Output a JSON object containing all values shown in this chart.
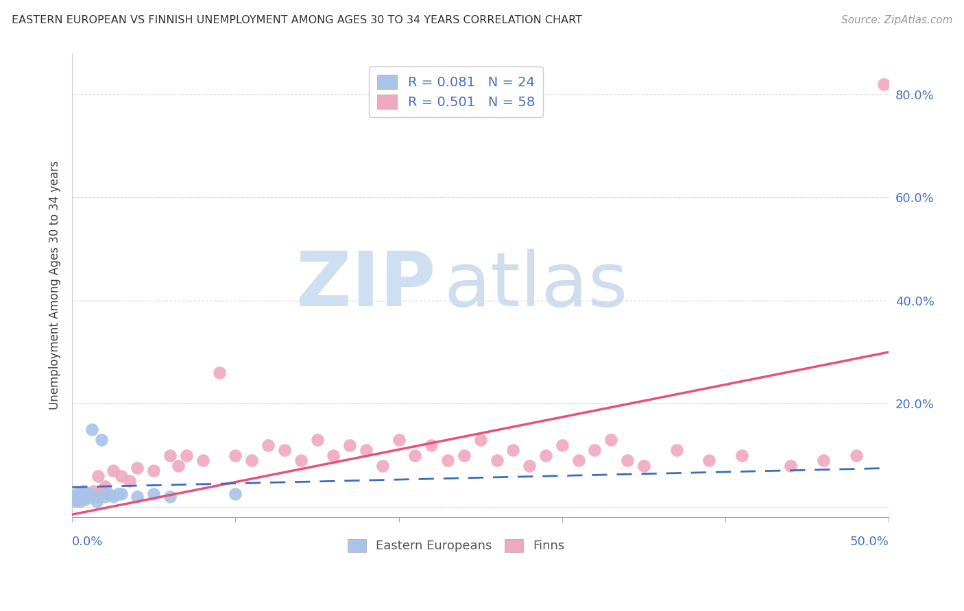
{
  "title": "EASTERN EUROPEAN VS FINNISH UNEMPLOYMENT AMONG AGES 30 TO 34 YEARS CORRELATION CHART",
  "source": "Source: ZipAtlas.com",
  "ylabel": "Unemployment Among Ages 30 to 34 years",
  "xlim": [
    0.0,
    0.5
  ],
  "ylim": [
    -0.02,
    0.88
  ],
  "blue_R": 0.081,
  "blue_N": 24,
  "pink_R": 0.501,
  "pink_N": 58,
  "blue_color": "#a8c4e8",
  "pink_color": "#f0a8be",
  "blue_line_color": "#3a6cc4",
  "pink_line_color": "#e8507a",
  "text_color": "#4472c4",
  "grid_color": "#cccccc",
  "watermark_zip_color": "#cddff0",
  "watermark_atlas_color": "#c8d8ea",
  "legend_label_blue": "Eastern Europeans",
  "legend_label_pink": "Finns",
  "blue_x": [
    0.0,
    0.002,
    0.003,
    0.005,
    0.006,
    0.007,
    0.008,
    0.009,
    0.01,
    0.01,
    0.012,
    0.013,
    0.015,
    0.016,
    0.018,
    0.02,
    0.022,
    0.025,
    0.028,
    0.03,
    0.04,
    0.05,
    0.06,
    0.1
  ],
  "blue_y": [
    0.02,
    0.015,
    0.025,
    0.01,
    0.02,
    0.03,
    0.015,
    0.025,
    0.02,
    0.025,
    0.15,
    0.02,
    0.01,
    0.02,
    0.13,
    0.02,
    0.025,
    0.02,
    0.025,
    0.025,
    0.02,
    0.025,
    0.02,
    0.025
  ],
  "pink_x": [
    0.0,
    0.001,
    0.002,
    0.004,
    0.005,
    0.007,
    0.008,
    0.01,
    0.012,
    0.013,
    0.015,
    0.016,
    0.018,
    0.02,
    0.022,
    0.025,
    0.03,
    0.035,
    0.04,
    0.05,
    0.06,
    0.065,
    0.07,
    0.08,
    0.09,
    0.1,
    0.11,
    0.12,
    0.13,
    0.14,
    0.15,
    0.16,
    0.17,
    0.18,
    0.19,
    0.2,
    0.21,
    0.22,
    0.23,
    0.24,
    0.25,
    0.26,
    0.27,
    0.28,
    0.29,
    0.3,
    0.31,
    0.32,
    0.33,
    0.34,
    0.35,
    0.37,
    0.39,
    0.41,
    0.44,
    0.46,
    0.48,
    0.497
  ],
  "pink_y": [
    0.015,
    0.02,
    0.01,
    0.025,
    0.015,
    0.025,
    0.02,
    0.025,
    0.02,
    0.03,
    0.025,
    0.06,
    0.03,
    0.04,
    0.025,
    0.07,
    0.06,
    0.05,
    0.075,
    0.07,
    0.1,
    0.08,
    0.1,
    0.09,
    0.26,
    0.1,
    0.09,
    0.12,
    0.11,
    0.09,
    0.13,
    0.1,
    0.12,
    0.11,
    0.08,
    0.13,
    0.1,
    0.12,
    0.09,
    0.1,
    0.13,
    0.09,
    0.11,
    0.08,
    0.1,
    0.12,
    0.09,
    0.11,
    0.13,
    0.09,
    0.08,
    0.11,
    0.09,
    0.1,
    0.08,
    0.09,
    0.1,
    0.82
  ],
  "pink_line_x0": 0.0,
  "pink_line_y0": -0.015,
  "pink_line_x1": 0.5,
  "pink_line_y1": 0.3,
  "blue_line_x0": 0.0,
  "blue_line_y0": 0.038,
  "blue_line_x1": 0.5,
  "blue_line_y1": 0.075
}
